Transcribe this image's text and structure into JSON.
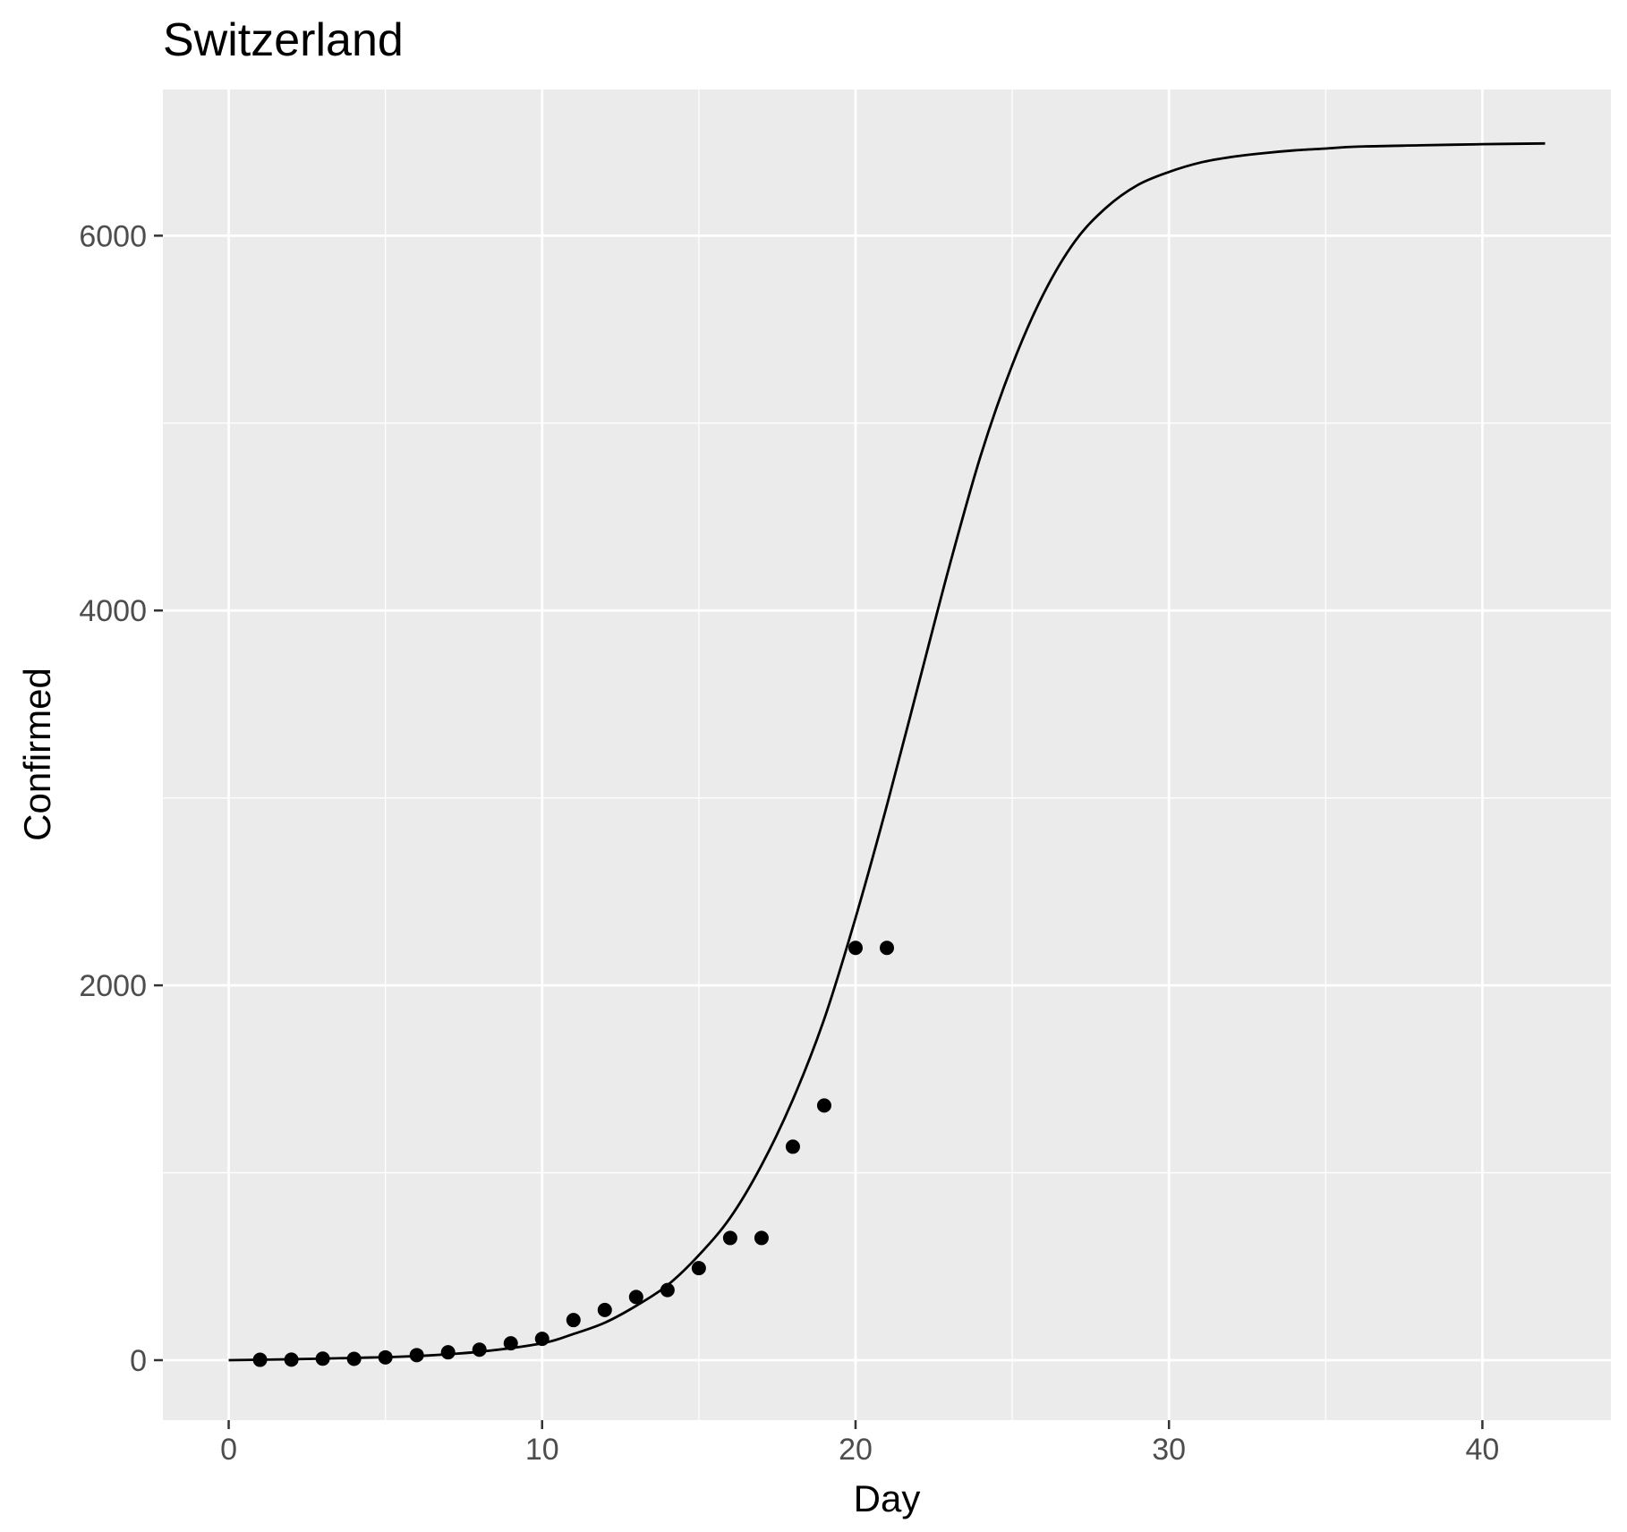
{
  "chart_data": {
    "type": "scatter",
    "title": "Switzerland",
    "xlabel": "Day",
    "ylabel": "Confirmed",
    "xlim": [
      -2.1,
      44.1
    ],
    "ylim": [
      -320,
      6780
    ],
    "x_ticks": [
      0,
      10,
      20,
      30,
      40
    ],
    "y_ticks": [
      0,
      2000,
      4000,
      6000
    ],
    "x_minor_ticks": [
      5,
      15,
      25,
      35
    ],
    "y_minor_ticks": [
      1000,
      3000,
      5000
    ],
    "grid": true,
    "legend": "none",
    "background_color": "#ebebeb",
    "grid_color": "#ffffff",
    "mark_color": "#000000",
    "series": [
      {
        "kind": "points",
        "x": [
          1,
          2,
          3,
          4,
          5,
          6,
          7,
          8,
          9,
          10,
          11,
          12,
          13,
          14,
          15,
          16,
          17,
          18,
          19,
          20,
          21
        ],
        "y": [
          2,
          3,
          8,
          7,
          15,
          27,
          42,
          56,
          90,
          114,
          214,
          268,
          337,
          374,
          491,
          652,
          652,
          1139,
          1359,
          2200,
          2200
        ]
      },
      {
        "kind": "fitted-curve",
        "model": "logistic",
        "x": [
          0,
          2,
          4,
          6,
          8,
          10,
          11,
          12,
          13,
          14,
          15,
          16,
          17,
          18,
          19,
          20,
          21,
          22,
          23,
          24,
          25,
          26,
          27,
          28,
          29,
          30,
          31,
          32,
          33,
          34,
          35,
          36,
          38,
          40,
          42
        ],
        "y": [
          0,
          5,
          12,
          22,
          45,
          90,
          140,
          200,
          290,
          400,
          560,
          760,
          1040,
          1390,
          1820,
          2360,
          2960,
          3600,
          4240,
          4830,
          5310,
          5690,
          5970,
          6150,
          6270,
          6340,
          6390,
          6420,
          6440,
          6455,
          6465,
          6475,
          6482,
          6488,
          6492
        ]
      }
    ]
  }
}
